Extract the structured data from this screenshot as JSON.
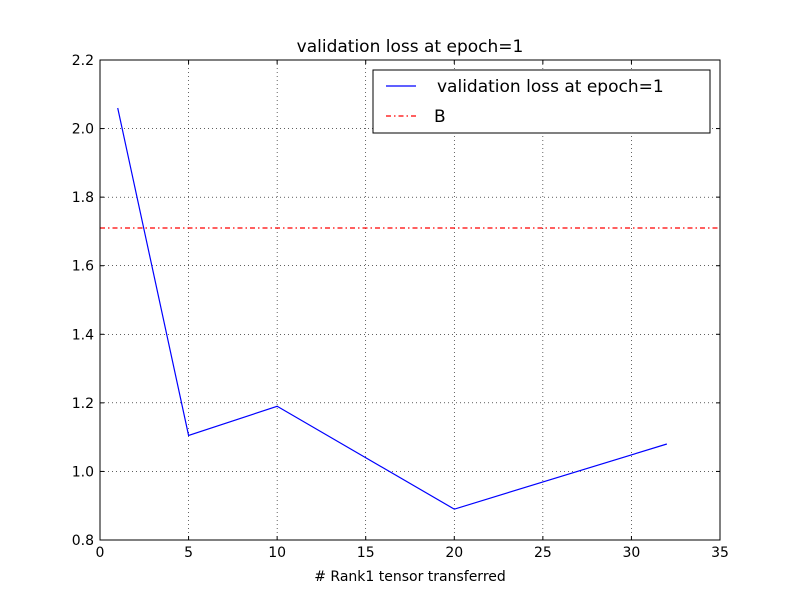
{
  "chart_data": {
    "type": "line",
    "title": "validation loss at epoch=1",
    "xlabel": "# Rank1 tensor transferred",
    "ylabel": "",
    "xlim": [
      0,
      35
    ],
    "ylim": [
      0.8,
      2.2
    ],
    "xticks": [
      0,
      5,
      10,
      15,
      20,
      25,
      30,
      35
    ],
    "yticks": [
      0.8,
      1.0,
      1.2,
      1.4,
      1.6,
      1.8,
      2.0,
      2.2
    ],
    "xtick_labels": [
      "0",
      "5",
      "10",
      "15",
      "20",
      "25",
      "30",
      "35"
    ],
    "ytick_labels": [
      "0.8",
      "1.0",
      "1.2",
      "1.4",
      "1.6",
      "1.8",
      "2.0",
      "2.2"
    ],
    "grid": true,
    "legend_position": "top-right",
    "series": [
      {
        "name": "validation loss at epoch=1",
        "style": "solid",
        "color": "#0000ff",
        "x": [
          1,
          5,
          10,
          20,
          32
        ],
        "y": [
          2.06,
          1.105,
          1.19,
          0.89,
          1.08
        ]
      },
      {
        "name": "B",
        "style": "dashdot",
        "color": "#ff0000",
        "hline": 1.71
      }
    ]
  }
}
